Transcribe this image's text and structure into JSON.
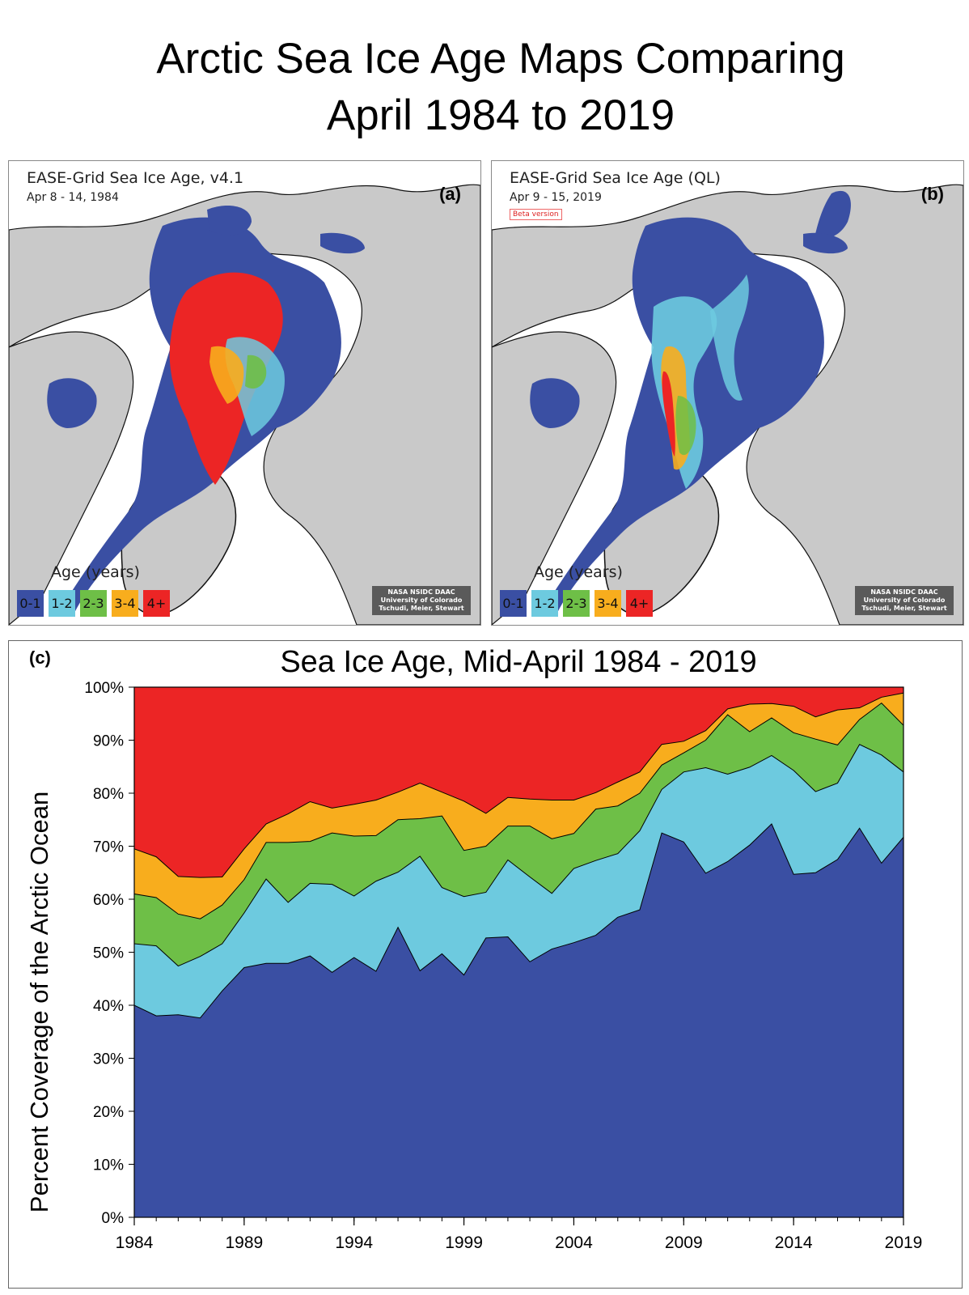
{
  "page": {
    "title_line1": "Arctic Sea Ice Age Maps Comparing",
    "title_line2": "April 1984 to 2019"
  },
  "map_a": {
    "title": "EASE-Grid Sea Ice Age, v4.1",
    "date": "Apr 8 - 14, 1984",
    "letter": "(a)",
    "legend_title": "Age (years)",
    "credit_line1": "NASA NSIDC DAAC",
    "credit_line2": "University of Colorado",
    "credit_line3": "Tschudi, Meier, Stewart"
  },
  "map_b": {
    "title": "EASE-Grid Sea Ice Age (QL)",
    "date": "Apr 9 - 15, 2019",
    "letter": "(b)",
    "beta": "Beta version",
    "legend_title": "Age (years)",
    "credit_line1": "NASA NSIDC DAAC",
    "credit_line2": "University of Colorado",
    "credit_line3": "Tschudi, Meier, Stewart"
  },
  "legend": [
    {
      "label": "0-1",
      "color": "#3a4fa3"
    },
    {
      "label": "1-2",
      "color": "#6dcadf"
    },
    {
      "label": "2-3",
      "color": "#6ebf47"
    },
    {
      "label": "3-4",
      "color": "#f8ad1d"
    },
    {
      "label": "4+",
      "color": "#ec2525"
    }
  ],
  "chart_data": {
    "type": "area",
    "panel_label": "(c)",
    "title": "Sea Ice Age, Mid-April 1984 - 2019",
    "ylabel": "Percent Coverage of the Arctic Ocean",
    "xlabel": "",
    "ylim": [
      0,
      100
    ],
    "xlim": [
      1984,
      2019
    ],
    "yticks": [
      "0%",
      "10%",
      "20%",
      "30%",
      "40%",
      "50%",
      "60%",
      "70%",
      "80%",
      "90%",
      "100%"
    ],
    "xticks": [
      "1984",
      "1989",
      "1994",
      "1999",
      "2004",
      "2009",
      "2014",
      "2019"
    ],
    "x": [
      1984,
      1985,
      1986,
      1987,
      1988,
      1989,
      1990,
      1991,
      1992,
      1993,
      1994,
      1995,
      1996,
      1997,
      1998,
      1999,
      2000,
      2001,
      2002,
      2003,
      2004,
      2005,
      2006,
      2007,
      2008,
      2009,
      2010,
      2011,
      2012,
      2013,
      2014,
      2015,
      2016,
      2017,
      2018,
      2019
    ],
    "stacking": "cumulative",
    "series": [
      {
        "name": "0-1",
        "color": "#3a4fa3",
        "values": [
          40.0,
          38.0,
          38.2,
          37.6,
          42.7,
          47.1,
          47.9,
          47.9,
          49.3,
          46.2,
          49.0,
          46.4,
          54.7,
          46.5,
          49.7,
          45.7,
          52.7,
          52.9,
          48.2,
          50.6,
          51.8,
          53.2,
          56.6,
          58.0,
          72.5,
          70.8,
          64.9,
          67.1,
          70.2,
          74.2,
          64.7,
          65.0,
          67.5,
          73.4,
          66.8,
          71.7
        ]
      },
      {
        "name": "1-2",
        "color": "#6dcadf",
        "values": [
          51.6,
          51.2,
          47.4,
          49.2,
          51.6,
          57.4,
          63.8,
          59.4,
          63.0,
          62.8,
          60.6,
          63.4,
          65.1,
          68.1,
          62.2,
          60.5,
          61.3,
          67.4,
          64.2,
          61.1,
          65.8,
          67.3,
          68.6,
          72.9,
          80.7,
          84.0,
          84.8,
          83.6,
          84.9,
          87.1,
          84.3,
          80.3,
          81.9,
          89.2,
          87.2,
          84.0
        ]
      },
      {
        "name": "2-3",
        "color": "#6ebf47",
        "values": [
          61.0,
          60.3,
          57.2,
          56.3,
          58.9,
          63.7,
          70.7,
          70.7,
          70.9,
          72.5,
          71.9,
          72.0,
          75.0,
          75.2,
          75.7,
          69.2,
          70.0,
          73.8,
          73.8,
          71.4,
          72.4,
          77.0,
          77.6,
          80.0,
          85.3,
          87.6,
          90.0,
          94.8,
          91.6,
          94.2,
          91.4,
          90.2,
          89.1,
          93.9,
          97.0,
          92.8
        ]
      },
      {
        "name": "3-4",
        "color": "#f8ad1d",
        "values": [
          69.5,
          68.0,
          64.3,
          64.1,
          64.2,
          69.5,
          74.2,
          76.1,
          78.4,
          77.2,
          77.9,
          78.7,
          80.2,
          81.9,
          80.2,
          78.5,
          76.2,
          79.2,
          78.9,
          78.7,
          78.7,
          80.1,
          82.1,
          84.0,
          89.2,
          89.8,
          91.8,
          95.9,
          96.8,
          96.9,
          96.4,
          94.4,
          95.7,
          96.1,
          98.1,
          98.9
        ]
      },
      {
        "name": "4+",
        "color": "#ec2525",
        "values": [
          100,
          100,
          100,
          100,
          100,
          100,
          100,
          100,
          100,
          100,
          100,
          100,
          100,
          100,
          100,
          100,
          100,
          100,
          100,
          100,
          100,
          100,
          100,
          100,
          100,
          100,
          100,
          100,
          100,
          100,
          100,
          100,
          100,
          100,
          100,
          100
        ]
      }
    ]
  }
}
